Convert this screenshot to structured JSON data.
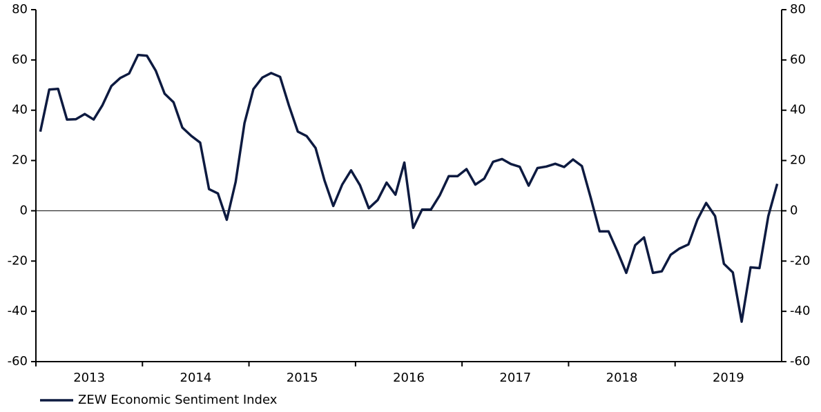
{
  "chart_data": {
    "type": "line",
    "categories": [
      "2013",
      null,
      null,
      null,
      null,
      null,
      null,
      null,
      null,
      null,
      null,
      null,
      "2014",
      null,
      null,
      null,
      null,
      null,
      null,
      null,
      null,
      null,
      null,
      null,
      "2015",
      null,
      null,
      null,
      null,
      null,
      null,
      null,
      null,
      null,
      null,
      null,
      "2016",
      null,
      null,
      null,
      null,
      null,
      null,
      null,
      null,
      null,
      null,
      null,
      "2017",
      null,
      null,
      null,
      null,
      null,
      null,
      null,
      null,
      null,
      null,
      null,
      "2018",
      null,
      null,
      null,
      null,
      null,
      null,
      null,
      null,
      null,
      null,
      null,
      "2019",
      null,
      null,
      null,
      null,
      null,
      null,
      null,
      null,
      null,
      null,
      null
    ],
    "series": [
      {
        "name": "ZEW Economic Sentiment Index",
        "color": "#0d1a40",
        "values": [
          31.5,
          48.2,
          48.5,
          36.3,
          36.4,
          38.5,
          36.3,
          42.0,
          49.6,
          52.8,
          54.6,
          62.0,
          61.7,
          55.7,
          46.6,
          43.2,
          33.1,
          29.8,
          27.1,
          8.6,
          6.9,
          -3.6,
          11.5,
          34.9,
          48.4,
          53.0,
          54.8,
          53.3,
          41.9,
          31.5,
          29.7,
          25.0,
          12.1,
          1.9,
          10.4,
          16.1,
          10.2,
          1.0,
          4.3,
          11.2,
          6.4,
          19.2,
          -6.8,
          0.5,
          0.5,
          6.2,
          13.8,
          13.8,
          16.6,
          10.4,
          12.8,
          19.5,
          20.6,
          18.6,
          17.5,
          10.0,
          17.0,
          17.6,
          18.7,
          17.4,
          20.4,
          17.8,
          5.1,
          -8.2,
          -8.2,
          -16.1,
          -24.7,
          -13.7,
          -10.6,
          -24.7,
          -24.1,
          -17.5,
          -15.0,
          -13.4,
          -3.6,
          3.1,
          -2.1,
          -21.1,
          -24.5,
          -44.1,
          -22.5,
          -22.8,
          -2.1,
          10.7
        ]
      }
    ],
    "ylim": [
      -60,
      80
    ],
    "yticks": [
      -60,
      -40,
      -20,
      0,
      20,
      40,
      60,
      80
    ],
    "y2lim": [
      -60,
      80
    ],
    "y2ticks": [
      -60,
      -40,
      -20,
      0,
      20,
      40,
      60,
      80
    ],
    "legend": "bottom-left"
  }
}
